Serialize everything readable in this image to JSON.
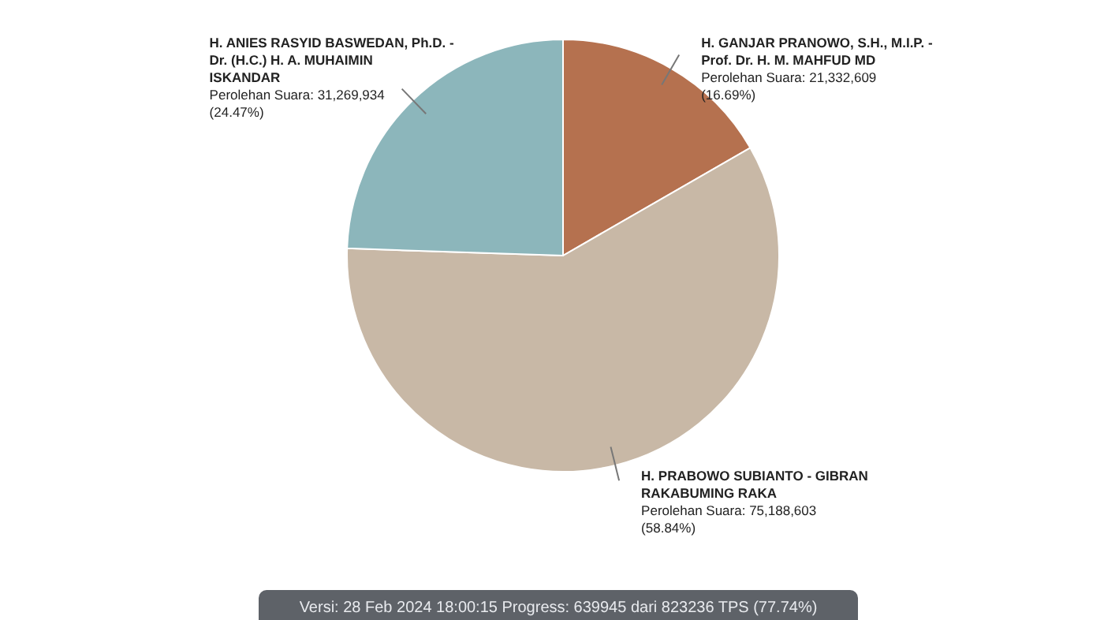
{
  "chart_data": {
    "type": "pie",
    "categories": [
      "H. GANJAR PRANOWO, S.H., M.I.P. - Prof. Dr. H. M. MAHFUD MD",
      "H. PRABOWO SUBIANTO - GIBRAN RAKABUMING RAKA",
      "H. ANIES RASYID BASWEDAN, Ph.D. - Dr. (H.C.) H. A. MUHAIMIN ISKANDAR"
    ],
    "values": [
      21332609,
      75188603,
      31269934
    ],
    "colors": [
      "#b5714f",
      "#c8b8a6",
      "#8cb6bb"
    ],
    "value_labels": [
      "Perolehan Suara: 21,332,609 (16.69%)",
      "Perolehan Suara: 75,188,603 (58.84%)",
      "Perolehan Suara: 31,269,934 (24.47%)"
    ],
    "annotations": [
      "Versi: 28 Feb 2024 18:00:15 Progress: 639945 dari 823236 TPS (77.74%)"
    ]
  }
}
